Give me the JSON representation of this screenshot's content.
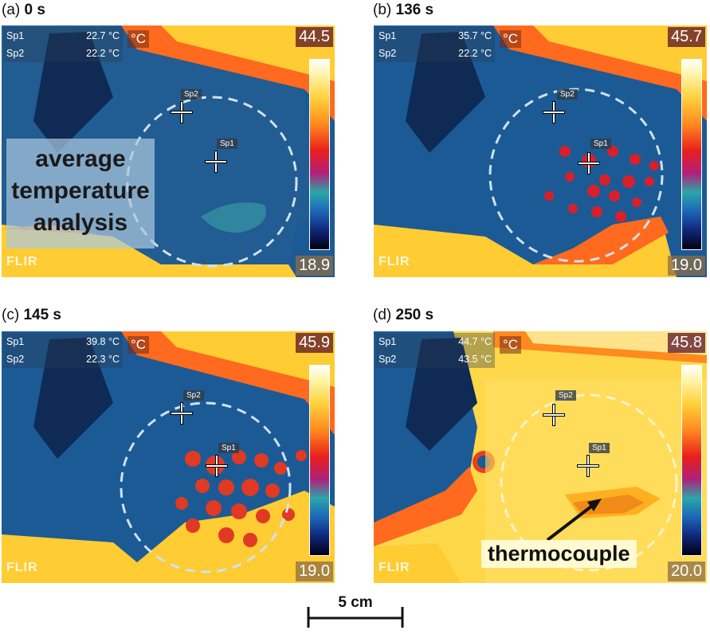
{
  "panels": [
    {
      "letter": "(a)",
      "time": "0 s",
      "sp1_label": "Sp1",
      "sp1_value": "22.7 °C",
      "sp2_label": "Sp2",
      "sp2_value": "22.2 °C",
      "unit": "°C",
      "scale_max": "44.5",
      "scale_min": "18.9",
      "overlay_text": "average temperature analysis",
      "logo": "FLIR"
    },
    {
      "letter": "(b)",
      "time": "136 s",
      "sp1_label": "Sp1",
      "sp1_value": "35.7 °C",
      "sp2_label": "Sp2",
      "sp2_value": "22.2 °C",
      "unit": "°C",
      "scale_max": "45.7",
      "scale_min": "19.0",
      "logo": "FLIR"
    },
    {
      "letter": "(c)",
      "time": "145 s",
      "sp1_label": "Sp1",
      "sp1_value": "39.8 °C",
      "sp2_label": "Sp2",
      "sp2_value": "22.3 °C",
      "unit": "°C",
      "scale_max": "45.9",
      "scale_min": "19.0",
      "logo": "FLIR"
    },
    {
      "letter": "(d)",
      "time": "250 s",
      "sp1_label": "Sp1",
      "sp1_value": "44.7 °C",
      "sp2_label": "Sp2",
      "sp2_value": "43.5 °C",
      "unit": "°C",
      "scale_max": "45.8",
      "scale_min": "20.0",
      "overlay_text": "thermocouple",
      "logo": "FLIR"
    }
  ],
  "scale_bar": {
    "label": "5 cm"
  },
  "colors": {
    "cold": "#1c4f88",
    "warm": "#ff5a1e",
    "hot": "#ffe066"
  }
}
